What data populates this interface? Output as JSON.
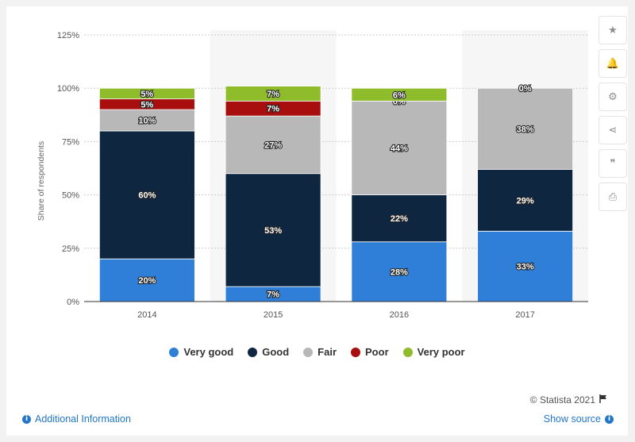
{
  "chart_data": {
    "type": "bar",
    "stacked": true,
    "categories": [
      "2014",
      "2015",
      "2016",
      "2017"
    ],
    "series": [
      {
        "name": "Very good",
        "values": [
          20,
          7,
          28,
          33
        ],
        "labels": [
          "20%",
          "7%",
          "28%",
          "33%"
        ],
        "color": "#2f7ed8"
      },
      {
        "name": "Good",
        "values": [
          60,
          53,
          22,
          29
        ],
        "labels": [
          "60%",
          "53%",
          "22%",
          "29%"
        ],
        "color": "#0f2640"
      },
      {
        "name": "Fair",
        "values": [
          10,
          27,
          44,
          38
        ],
        "labels": [
          "10%",
          "27%",
          "44%",
          "38%"
        ],
        "color": "#b8b8b8"
      },
      {
        "name": "Poor",
        "values": [
          5,
          7,
          0,
          0
        ],
        "labels": [
          "5%",
          "7%",
          "0%",
          "0%"
        ],
        "color": "#a80e0e"
      },
      {
        "name": "Very poor",
        "values": [
          5,
          7,
          6,
          0
        ],
        "labels": [
          "5%",
          "7%",
          "6%",
          ""
        ],
        "color": "#8fbc2b"
      }
    ],
    "ylabel": "Share of respondents",
    "ylim": [
      0,
      125
    ],
    "yticks": [
      "0%",
      "25%",
      "50%",
      "75%",
      "100%",
      "125%"
    ],
    "grid": true,
    "legend_position": "bottom"
  },
  "colors": {
    "accent": "#2376c7",
    "alt_column_band": "#f6f6f6",
    "grid": "#cccccc"
  },
  "sidebar": {
    "buttons": [
      {
        "name": "star-icon",
        "glyph": "★"
      },
      {
        "name": "bell-icon",
        "glyph": "🔔"
      },
      {
        "name": "gear-icon",
        "glyph": "⚙"
      },
      {
        "name": "share-icon",
        "glyph": "⋖"
      },
      {
        "name": "quote-icon",
        "glyph": "❞"
      },
      {
        "name": "print-icon",
        "glyph": "⎙"
      }
    ]
  },
  "footer": {
    "credit": "© Statista 2021",
    "additional_info": "Additional Information",
    "show_source": "Show source"
  }
}
